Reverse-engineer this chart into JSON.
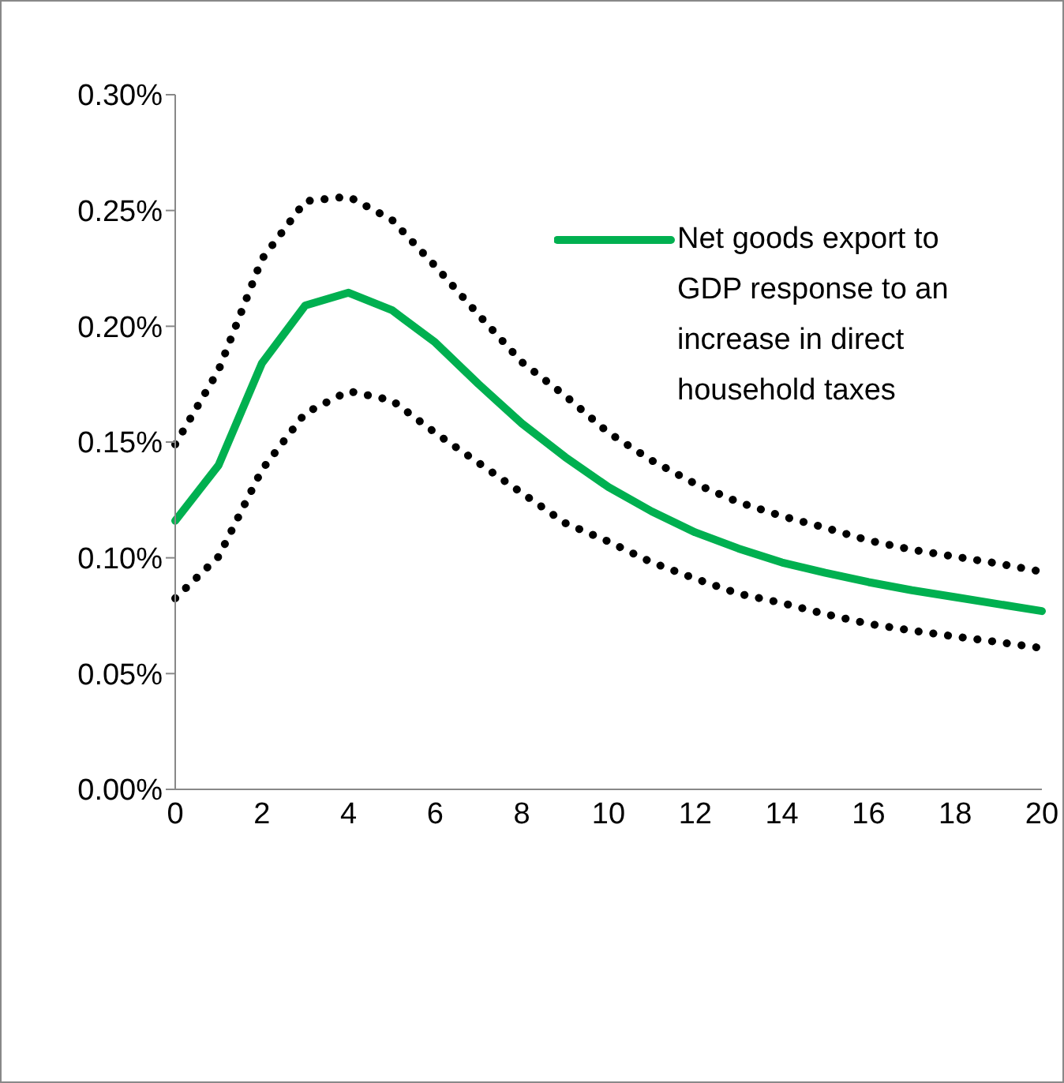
{
  "chart_data": {
    "type": "line",
    "categories": [
      "0",
      null,
      "2",
      null,
      "4",
      null,
      "6",
      null,
      "8",
      null,
      "10",
      null,
      "12",
      null,
      "14",
      null,
      "16",
      null,
      "18",
      null,
      "20"
    ],
    "series": [
      {
        "name": "Net goods export to GDP response to an increase in direct household taxes",
        "color": "#00b050",
        "line_style": "solid",
        "values": [
          0.116,
          0.14,
          0.184,
          0.209,
          0.2145,
          0.207,
          0.193,
          0.175,
          0.158,
          0.1435,
          0.1305,
          0.12,
          0.111,
          0.104,
          0.098,
          0.0935,
          0.0895,
          0.086,
          0.083,
          0.08,
          0.077
        ]
      },
      {
        "color": "#000000",
        "line_style": "dotted",
        "values": [
          0.149,
          0.181,
          0.229,
          0.254,
          0.256,
          0.246,
          0.226,
          0.205,
          0.1845,
          0.17,
          0.154,
          0.142,
          0.132,
          0.124,
          0.118,
          0.113,
          0.1075,
          0.1035,
          0.1005,
          0.0975,
          0.094
        ]
      },
      {
        "color": "#000000",
        "line_style": "dotted",
        "values": [
          0.0825,
          0.1005,
          0.138,
          0.1625,
          0.172,
          0.168,
          0.154,
          0.141,
          0.128,
          0.115,
          0.107,
          0.098,
          0.091,
          0.0845,
          0.0805,
          0.0757,
          0.0715,
          0.0686,
          0.066,
          0.0636,
          0.061
        ]
      }
    ],
    "ylim": [
      0,
      0.3
    ],
    "yticks": [
      {
        "value": 0,
        "label": "0.00%"
      },
      {
        "value": 0.05,
        "label": "0.05%"
      },
      {
        "value": 0.1,
        "label": "0.10%"
      },
      {
        "value": 0.15,
        "label": "0.15%"
      },
      {
        "value": 0.2,
        "label": "0.20%"
      },
      {
        "value": 0.25,
        "label": "0.25%"
      },
      {
        "value": 0.3,
        "label": "0.30%"
      }
    ],
    "grid": false,
    "legend": "top right"
  }
}
